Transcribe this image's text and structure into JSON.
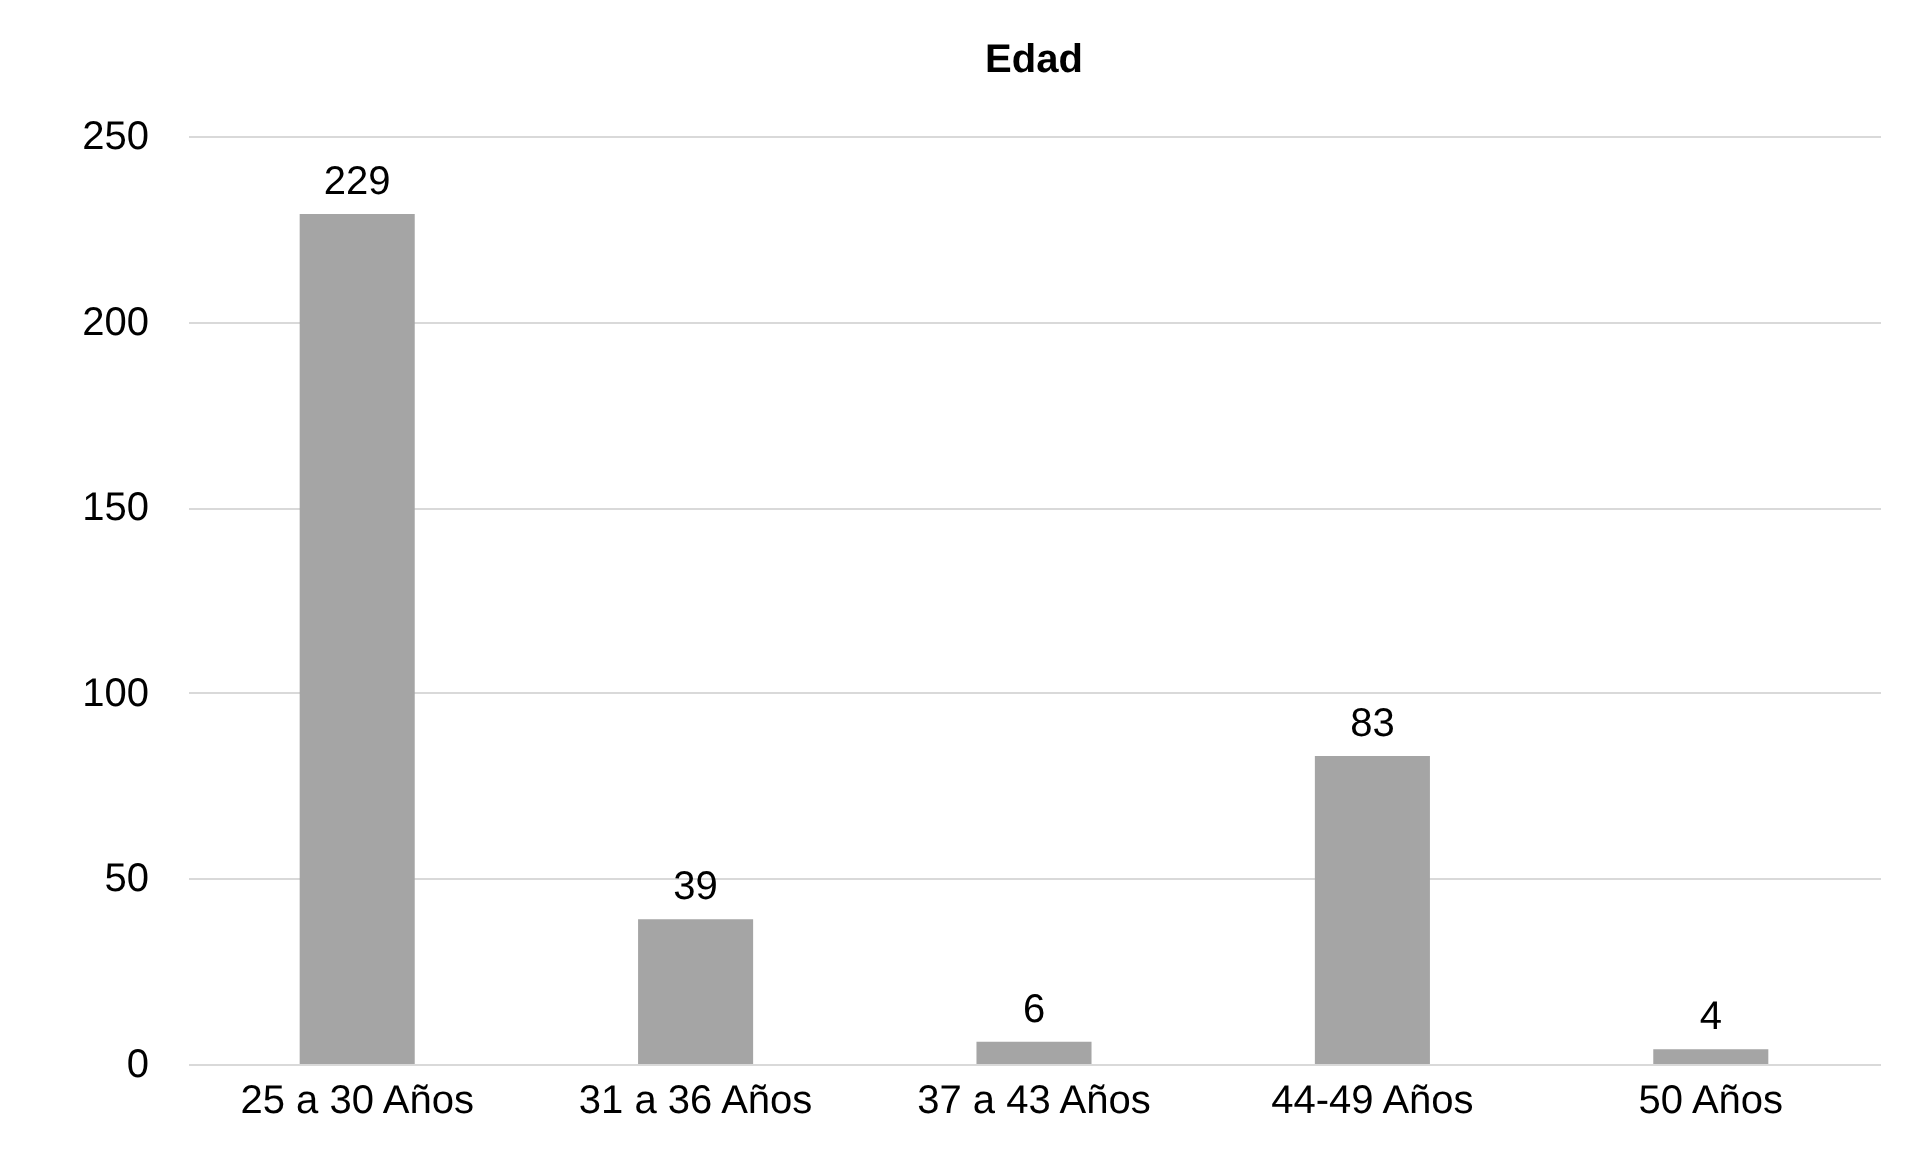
{
  "chart_data": {
    "type": "bar",
    "title": "Edad",
    "categories": [
      "25 a 30 Años",
      "31 a 36 Años",
      "37 a 43 Años",
      "44-49 Años",
      "50 Años"
    ],
    "values": [
      229,
      39,
      6,
      83,
      4
    ],
    "color": "#a5a5a5",
    "ylim": [
      0,
      250
    ],
    "yticks": [
      0,
      50,
      100,
      150,
      200,
      250
    ],
    "grid": "y",
    "data_labels": true
  }
}
